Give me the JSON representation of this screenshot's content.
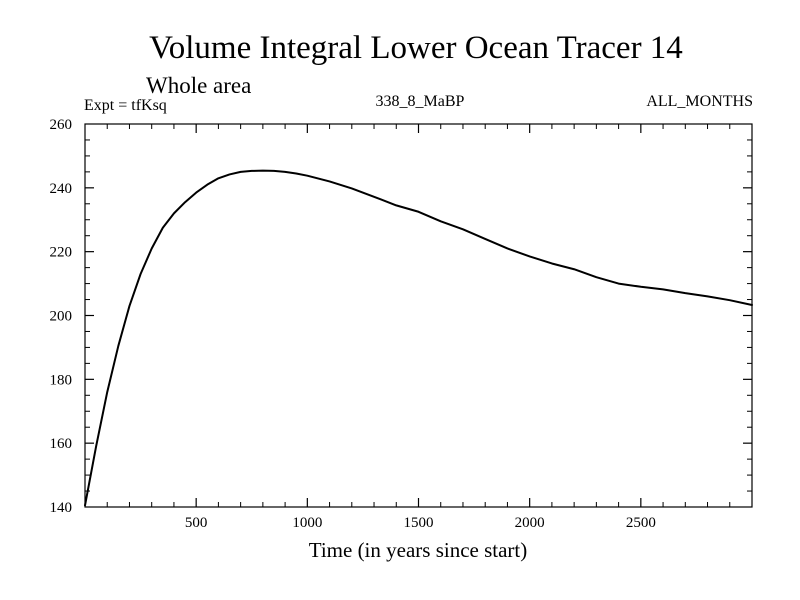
{
  "chart_data": {
    "type": "line",
    "title": "Volume Integral Lower Ocean Tracer 14",
    "subtitle": "Whole area",
    "experiment_label": "Expt = tfKsq",
    "period_label": "338_8_MaBP",
    "months_label": "ALL_MONTHS",
    "xlabel": "Time (in years since start)",
    "ylabel": "",
    "xlim": [
      0,
      3000
    ],
    "ylim": [
      140,
      260
    ],
    "x_ticks": [
      500,
      1000,
      1500,
      2000,
      2500
    ],
    "x_tick_labels": [
      "500",
      "1000",
      "1500",
      "2000",
      "2500"
    ],
    "y_ticks": [
      140,
      160,
      180,
      200,
      220,
      240,
      260
    ],
    "y_tick_labels": [
      "140",
      "160",
      "180",
      "200",
      "220",
      "240",
      "260"
    ],
    "x_minor_step": 100,
    "y_minor_step": 5,
    "grid": false,
    "legend": "none",
    "line_color": "#000000",
    "series": [
      {
        "name": "Lower Ocean Tracer 14",
        "x": [
          0,
          50,
          100,
          150,
          200,
          250,
          300,
          350,
          400,
          450,
          500,
          550,
          600,
          650,
          700,
          750,
          800,
          850,
          900,
          950,
          1000,
          1100,
          1200,
          1300,
          1400,
          1500,
          1600,
          1700,
          1800,
          1900,
          2000,
          2100,
          2200,
          2300,
          2400,
          2500,
          2600,
          2700,
          2800,
          2900,
          3000
        ],
        "values": [
          140.5,
          159,
          176,
          190.5,
          203,
          213,
          221,
          227.5,
          232,
          235.5,
          238.5,
          241,
          243,
          244.2,
          245,
          245.3,
          245.4,
          245.3,
          245,
          244.5,
          243.8,
          242,
          239.8,
          237.2,
          234.5,
          232.5,
          229.5,
          227,
          224,
          221,
          218.5,
          216.3,
          214.5,
          212,
          210,
          209,
          208.2,
          207,
          206,
          204.8,
          203.3
        ]
      }
    ]
  }
}
